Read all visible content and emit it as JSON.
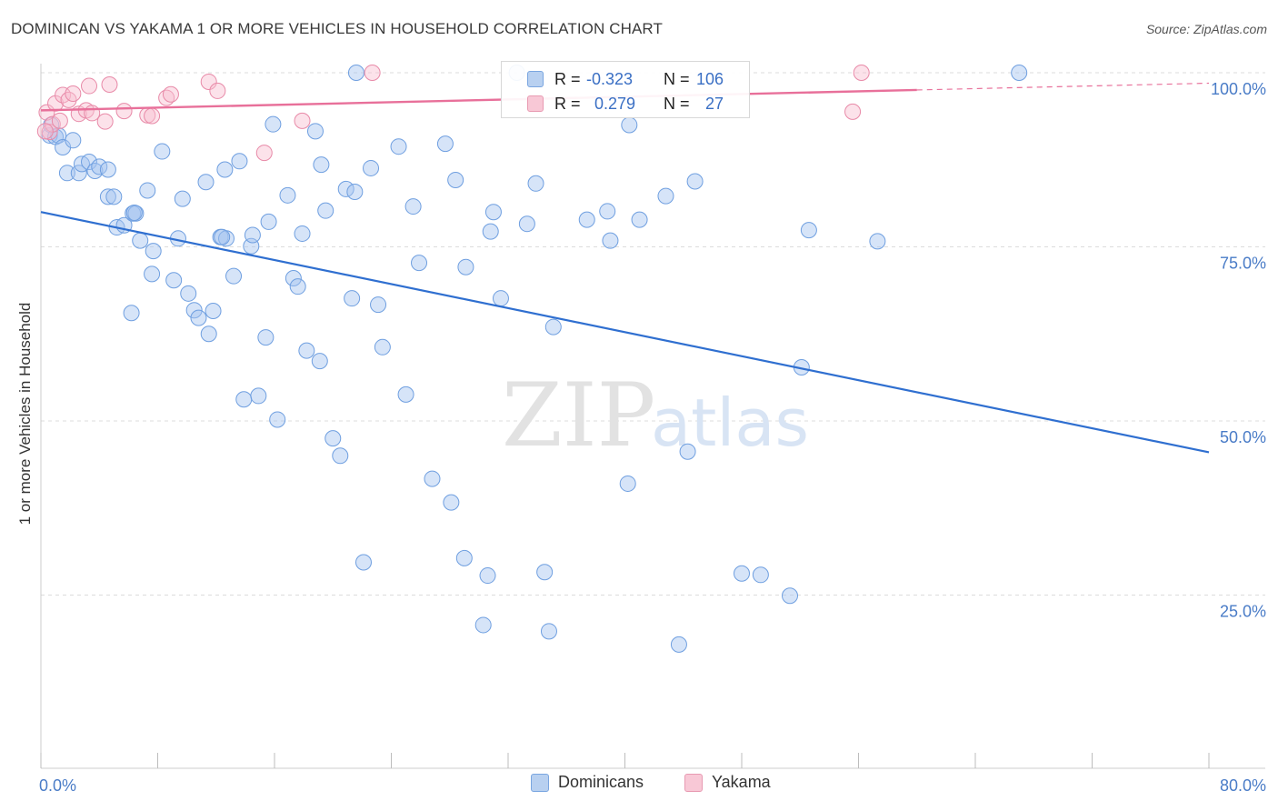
{
  "title": "DOMINICAN VS YAKAMA 1 OR MORE VEHICLES IN HOUSEHOLD CORRELATION CHART",
  "source": "Source: ZipAtlas.com",
  "watermark": {
    "zip": "ZIP",
    "atlas": "atlas"
  },
  "legend": {
    "items": [
      {
        "label": "Dominicans",
        "fill": "#b8d0f0",
        "stroke": "#7aa6e0"
      },
      {
        "label": "Yakama",
        "fill": "#f8c8d6",
        "stroke": "#e89ab2"
      }
    ]
  },
  "stats": {
    "rows": [
      {
        "r_label": "R =",
        "r_value": "-0.323",
        "n_label": "N =",
        "n_value": "106"
      },
      {
        "r_label": "R =",
        "r_value": "0.279",
        "n_label": "N =",
        "n_value": "27"
      }
    ]
  },
  "colors": {
    "blue_point_fill": "rgba(164,196,240,0.45)",
    "blue_point_stroke": "#6f9fe0",
    "blue_line": "#2f6fd0",
    "pink_point_fill": "rgba(248,190,208,0.45)",
    "pink_point_stroke": "#e88aa8",
    "pink_line": "#e8709a",
    "tick_label": "#4a7cc7",
    "grid": "#dcdcdc"
  },
  "chart_data": {
    "type": "scatter",
    "title": "DOMINICAN VS YAKAMA 1 OR MORE VEHICLES IN HOUSEHOLD CORRELATION CHART",
    "xlabel": "",
    "ylabel": "1 or more Vehicles in Household",
    "xlim": [
      0,
      80
    ],
    "ylim": [
      0,
      102
    ],
    "x_tick_labels": [
      {
        "value": 0,
        "label": "0.0%"
      },
      {
        "value": 80,
        "label": "80.0%"
      }
    ],
    "y_tick_labels": [
      {
        "value": 100,
        "label": "100.0%"
      },
      {
        "value": 75,
        "label": "75.0%"
      },
      {
        "value": 50,
        "label": "50.0%"
      },
      {
        "value": 25,
        "label": "25.0%"
      }
    ],
    "grid": true,
    "legend_position": "bottom-center",
    "series": [
      {
        "name": "Dominicans",
        "trend": {
          "x": [
            0,
            80
          ],
          "y": [
            80.0,
            45.5
          ],
          "dashed_from": null
        },
        "points": [
          [
            0.6,
            91.0
          ],
          [
            0.7,
            92.5
          ],
          [
            1.0,
            90.8
          ],
          [
            1.2,
            91.0
          ],
          [
            1.5,
            89.3
          ],
          [
            1.8,
            85.6
          ],
          [
            2.2,
            90.3
          ],
          [
            2.6,
            85.6
          ],
          [
            2.8,
            86.9
          ],
          [
            3.3,
            87.2
          ],
          [
            3.7,
            85.9
          ],
          [
            4.0,
            86.5
          ],
          [
            4.6,
            86.1
          ],
          [
            4.6,
            82.2
          ],
          [
            5.0,
            82.2
          ],
          [
            5.2,
            77.8
          ],
          [
            5.7,
            78.1
          ],
          [
            6.3,
            79.8
          ],
          [
            6.5,
            79.8
          ],
          [
            6.8,
            75.9
          ],
          [
            7.3,
            83.1
          ],
          [
            7.6,
            71.1
          ],
          [
            7.7,
            74.4
          ],
          [
            8.3,
            88.7
          ],
          [
            6.2,
            65.5
          ],
          [
            9.1,
            70.2
          ],
          [
            9.4,
            76.2
          ],
          [
            9.7,
            81.9
          ],
          [
            10.1,
            68.3
          ],
          [
            10.5,
            65.9
          ],
          [
            10.8,
            64.8
          ],
          [
            11.3,
            84.3
          ],
          [
            11.5,
            62.5
          ],
          [
            11.8,
            65.8
          ],
          [
            12.3,
            76.4
          ],
          [
            12.7,
            76.2
          ],
          [
            12.6,
            86.1
          ],
          [
            13.2,
            70.8
          ],
          [
            13.6,
            87.3
          ],
          [
            13.9,
            53.1
          ],
          [
            14.4,
            75.1
          ],
          [
            14.5,
            76.7
          ],
          [
            14.9,
            53.6
          ],
          [
            15.4,
            62.0
          ],
          [
            15.6,
            78.6
          ],
          [
            15.9,
            92.6
          ],
          [
            16.2,
            50.2
          ],
          [
            16.9,
            82.4
          ],
          [
            17.3,
            70.5
          ],
          [
            17.6,
            69.3
          ],
          [
            17.9,
            76.9
          ],
          [
            18.2,
            60.1
          ],
          [
            18.8,
            91.6
          ],
          [
            19.1,
            58.6
          ],
          [
            19.2,
            86.8
          ],
          [
            19.5,
            80.2
          ],
          [
            20.0,
            47.5
          ],
          [
            20.5,
            45.0
          ],
          [
            20.9,
            83.3
          ],
          [
            21.3,
            67.6
          ],
          [
            21.5,
            82.9
          ],
          [
            22.1,
            29.7
          ],
          [
            22.6,
            86.3
          ],
          [
            23.1,
            66.7
          ],
          [
            23.4,
            60.6
          ],
          [
            24.5,
            89.4
          ],
          [
            25.0,
            53.8
          ],
          [
            25.5,
            80.8
          ],
          [
            25.9,
            72.7
          ],
          [
            26.8,
            41.7
          ],
          [
            27.7,
            89.8
          ],
          [
            28.1,
            38.3
          ],
          [
            28.4,
            84.6
          ],
          [
            29.0,
            30.3
          ],
          [
            29.1,
            72.1
          ],
          [
            30.3,
            20.7
          ],
          [
            30.6,
            27.8
          ],
          [
            30.8,
            77.2
          ],
          [
            31.0,
            80.0
          ],
          [
            31.5,
            67.6
          ],
          [
            33.3,
            78.3
          ],
          [
            33.9,
            84.1
          ],
          [
            34.5,
            28.3
          ],
          [
            34.8,
            19.8
          ],
          [
            35.1,
            63.5
          ],
          [
            37.4,
            78.9
          ],
          [
            38.8,
            80.1
          ],
          [
            39.0,
            75.9
          ],
          [
            40.2,
            41.0
          ],
          [
            40.3,
            92.5
          ],
          [
            41.0,
            78.9
          ],
          [
            42.8,
            82.3
          ],
          [
            43.7,
            17.9
          ],
          [
            44.3,
            45.6
          ],
          [
            44.8,
            84.4
          ],
          [
            48.0,
            28.1
          ],
          [
            49.3,
            27.9
          ],
          [
            51.3,
            24.9
          ],
          [
            52.1,
            57.7
          ],
          [
            52.6,
            77.4
          ],
          [
            57.3,
            75.8
          ],
          [
            67.0,
            100.0
          ],
          [
            6.4,
            79.9
          ],
          [
            21.6,
            100.0
          ],
          [
            32.6,
            100.0
          ],
          [
            12.4,
            76.4
          ]
        ]
      },
      {
        "name": "Yakama",
        "trend": {
          "x": [
            0,
            80
          ],
          "y": [
            94.6,
            98.5
          ],
          "dashed_from": 60
        },
        "points": [
          [
            0.4,
            94.3
          ],
          [
            0.6,
            91.5
          ],
          [
            0.8,
            92.6
          ],
          [
            1.0,
            95.6
          ],
          [
            1.3,
            93.1
          ],
          [
            1.5,
            96.8
          ],
          [
            1.9,
            96.1
          ],
          [
            2.2,
            97.0
          ],
          [
            2.6,
            94.1
          ],
          [
            3.1,
            94.6
          ],
          [
            3.3,
            98.1
          ],
          [
            3.5,
            94.2
          ],
          [
            4.4,
            93.0
          ],
          [
            4.7,
            98.3
          ],
          [
            5.7,
            94.5
          ],
          [
            7.3,
            93.9
          ],
          [
            7.6,
            93.8
          ],
          [
            8.6,
            96.4
          ],
          [
            8.9,
            96.9
          ],
          [
            11.5,
            98.7
          ],
          [
            12.1,
            97.4
          ],
          [
            15.3,
            88.5
          ],
          [
            17.9,
            93.1
          ],
          [
            22.7,
            100.0
          ],
          [
            56.2,
            100.0
          ],
          [
            55.6,
            94.4
          ],
          [
            0.3,
            91.6
          ]
        ]
      }
    ]
  }
}
